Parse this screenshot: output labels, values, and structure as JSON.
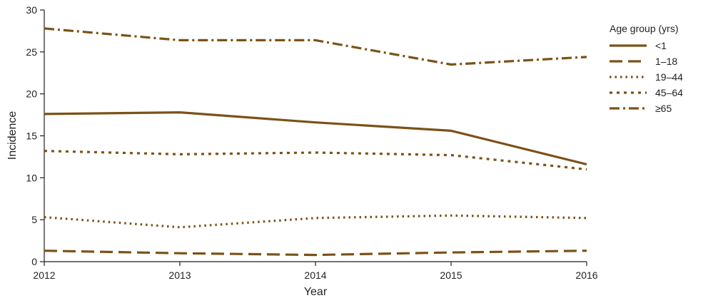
{
  "chart_data": {
    "type": "line",
    "xlabel": "Year",
    "ylabel": "Incidence",
    "x": [
      2012,
      2013,
      2014,
      2015,
      2016
    ],
    "xlim": [
      2012,
      2016
    ],
    "ylim": [
      0,
      30
    ],
    "yticks": [
      0,
      5,
      10,
      15,
      20,
      25,
      30
    ],
    "grid": false,
    "legend": {
      "title": "Age group (yrs)",
      "placement": "right"
    },
    "line_color": "#7b5217",
    "series": [
      {
        "name": "<1",
        "style": "solid",
        "values": [
          17.6,
          17.8,
          16.6,
          15.6,
          11.6
        ]
      },
      {
        "name": "1–18",
        "style": "long-dash",
        "values": [
          1.3,
          1.0,
          0.8,
          1.1,
          1.3
        ]
      },
      {
        "name": "19–44",
        "style": "dotted",
        "values": [
          5.3,
          4.1,
          5.2,
          5.5,
          5.2
        ]
      },
      {
        "name": "45–64",
        "style": "short-dash",
        "values": [
          13.2,
          12.8,
          13.0,
          12.7,
          11.0
        ]
      },
      {
        "name": "≥65",
        "style": "dash-dot",
        "values": [
          27.8,
          26.4,
          26.4,
          23.5,
          24.4
        ]
      }
    ]
  }
}
